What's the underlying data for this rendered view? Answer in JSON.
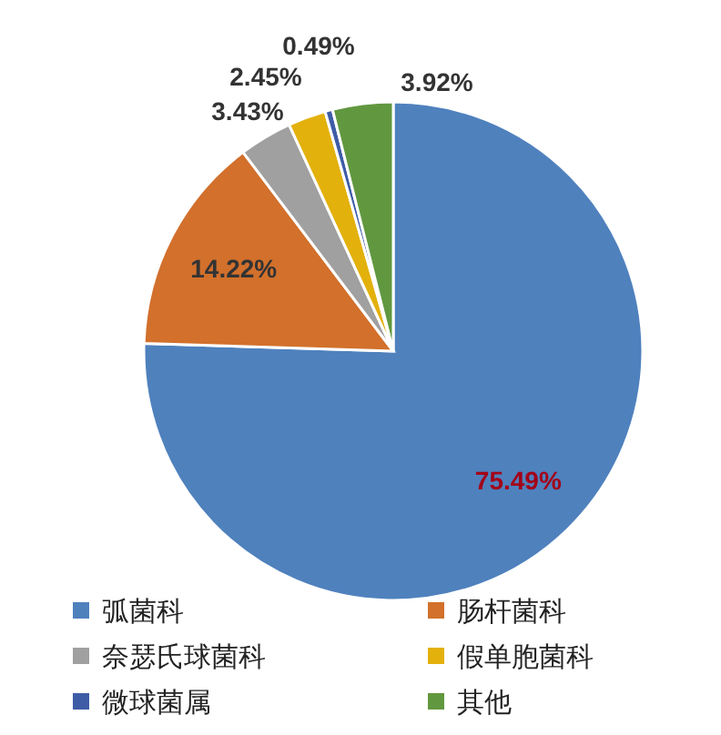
{
  "chart_data": {
    "type": "pie",
    "categories": [
      "弧菌科",
      "肠杆菌科",
      "奈瑟氏球菌科",
      "假单胞菌科",
      "微球菌属",
      "其他"
    ],
    "values": [
      75.49,
      14.22,
      3.43,
      2.45,
      0.49,
      3.92
    ],
    "value_labels": [
      "75.49%",
      "14.22%",
      "3.43%",
      "2.45%",
      "0.49%",
      "3.92%"
    ],
    "colors": [
      "#4f81bd",
      "#d2702c",
      "#a0a0a0",
      "#e3b10c",
      "#3e5da6",
      "#61983f"
    ],
    "legend": "bottom"
  }
}
